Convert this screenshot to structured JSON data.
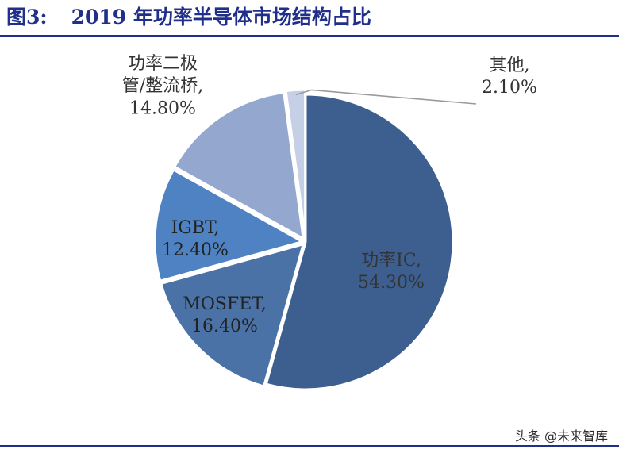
{
  "figure": {
    "title_number": "图3:",
    "title_text": "2019 年功率半导体市场结构占比"
  },
  "watermark": "头条 @未来智库",
  "colors": {
    "title": "#1f2f8a",
    "slice_power_ic": "#3d5f8f",
    "slice_mosfet": "#4a72a6",
    "slice_igbt": "#4f82c2",
    "slice_diode": "#94a8cf",
    "slice_other": "#c5d0e6"
  },
  "chart_data": {
    "type": "pie",
    "start_angle_deg_from_top_clockwise": 0,
    "slices": [
      {
        "label_lines": [
          "功率IC,",
          "54.30%"
        ],
        "value": 54.3,
        "color": "#3d5f8f",
        "label_color": "#333333"
      },
      {
        "label_lines": [
          "MOSFET,",
          "16.40%"
        ],
        "value": 16.4,
        "color": "#4a72a6",
        "label_color": "#222222"
      },
      {
        "label_lines": [
          "IGBT,",
          "12.40%"
        ],
        "value": 12.4,
        "color": "#4f82c2",
        "label_color": "#222222"
      },
      {
        "label_lines": [
          "功率二极",
          "管/整流桥,",
          "14.80%"
        ],
        "value": 14.8,
        "color": "#94a8cf",
        "label_color": "#333333"
      },
      {
        "label_lines": [
          "其他,",
          "2.10%"
        ],
        "value": 2.1,
        "color": "#c5d0e6",
        "label_color": "#333333"
      }
    ]
  }
}
